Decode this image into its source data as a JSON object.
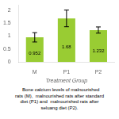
{
  "chart_data": {
    "type": "bar",
    "categories": [
      "M",
      "P1",
      "P2"
    ],
    "values": [
      0.952,
      1.68,
      1.232
    ],
    "errors": [
      0.18,
      0.32,
      0.12
    ],
    "value_labels": [
      "0.952",
      "1.68",
      "1.232"
    ],
    "data_labels": true,
    "color": "#99cc33",
    "xlabel": "Treatment Group",
    "ylim": [
      0,
      2.2
    ],
    "yticks": [
      0,
      0.5,
      1,
      1.5,
      2
    ],
    "grid": false,
    "annotations": [
      "  Bone calcium levels of malnourished",
      "rats (M),  malnourished rats after standard",
      "diet (P1) and  malnourished rats after",
      "seluang diet (P2)."
    ]
  }
}
